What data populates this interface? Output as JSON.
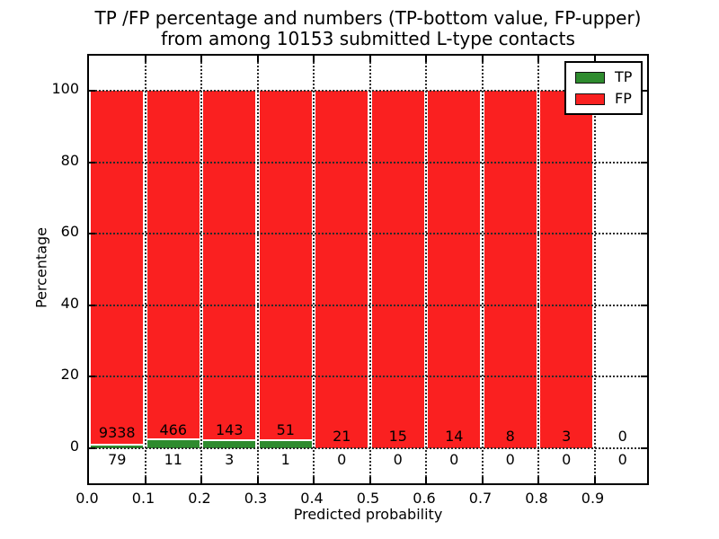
{
  "title": {
    "line1": "TP /FP percentage and numbers (TP-bottom value, FP-upper)",
    "line2": "from among 10153 submitted L-type contacts"
  },
  "x_axis": {
    "label": "Predicted probability",
    "ticks": [
      "0.0",
      "0.1",
      "0.2",
      "0.3",
      "0.4",
      "0.5",
      "0.6",
      "0.7",
      "0.8",
      "0.9"
    ]
  },
  "y_axis": {
    "label": "Percentage",
    "ticks": [
      "0",
      "20",
      "40",
      "60",
      "80",
      "100"
    ]
  },
  "legend": {
    "items": [
      {
        "label": "TP",
        "color": "#2e8b2e"
      },
      {
        "label": "FP",
        "color": "#fa2020"
      }
    ]
  },
  "chart_data": {
    "type": "bar",
    "stacked": true,
    "title": "TP /FP percentage and numbers (TP-bottom value, FP-upper) from among 10153 submitted L-type contacts",
    "xlabel": "Predicted probability",
    "ylabel": "Percentage",
    "xlim": [
      0.0,
      1.0
    ],
    "ylim": [
      -11,
      110
    ],
    "grid": true,
    "grid_style": "dotted",
    "legend_position": "upper right",
    "total_contacts": 10153,
    "bin_edges": [
      0.0,
      0.1,
      0.2,
      0.3,
      0.4,
      0.5,
      0.6,
      0.7,
      0.8,
      0.9,
      1.0
    ],
    "values_are": "counts per bin; bar heights are the TP/FP percentage share of each bin, stacked to 100%",
    "series": [
      {
        "name": "TP",
        "color": "#2e8b2e",
        "counts": [
          79,
          11,
          3,
          1,
          0,
          0,
          0,
          0,
          0,
          0
        ]
      },
      {
        "name": "FP",
        "color": "#fa2020",
        "counts": [
          9338,
          466,
          143,
          51,
          21,
          15,
          14,
          8,
          3,
          0
        ]
      }
    ]
  }
}
